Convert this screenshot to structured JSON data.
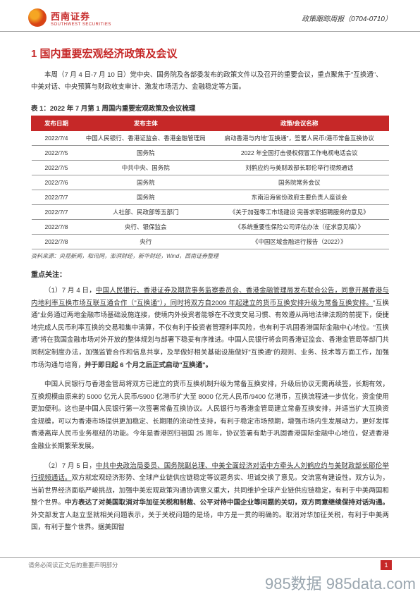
{
  "header": {
    "logo_main": "西南证券",
    "logo_sub": "SOUTHWEST SECURITIES",
    "right_text": "政策跟踪周报（0704-0710）"
  },
  "section_title": "1 国内重要宏观经济政策及会议",
  "intro": "本周（7 月 4 日-7 月 10 日）党中央、国务院及各部委发布的政策文件以及召开的重要会议，重点聚焦于\"互换通\"、中美对话、中央预算与财政收支审计、激发市场活力、金融稳定等方面。",
  "table": {
    "caption": "表 1：2022 年 7 月第 1 周国内重要宏观政策及会议梳理",
    "headers": [
      "发布日期",
      "发布主体",
      "政策/会议名称"
    ],
    "rows": [
      [
        "2022/7/4",
        "中国人民银行、香港证监会、香港金融管理局",
        "启动香港与内地\"互换通\"，签署人民币/港币常备互换协议"
      ],
      [
        "2022/7/5",
        "国务院",
        "2022 年全国打击侵权假冒工作电视电话会议"
      ],
      [
        "2022/7/5",
        "中共中央、国务院",
        "刘鹤应约与美财政部长耶伦举行视频通话"
      ],
      [
        "2022/7/6",
        "国务院",
        "国务院常务会议"
      ],
      [
        "2022/7/7",
        "国务院",
        "东南沿海省份政府主要负责人座谈会"
      ],
      [
        "2022/7/7",
        "人社部、民政部等五部门",
        "《关于加强零工市场建设 完善求职招聘服务的意见》"
      ],
      [
        "2022/7/8",
        "央行、银保监会",
        "《系统重要性保险公司评估办法（征求意见稿）》"
      ],
      [
        "2022/7/8",
        "央行",
        "《中国区域金融运行报告（2022）》"
      ]
    ],
    "source": "资料来源：央视新闻，和讯网，澎湃财经，新华财经，Wind，西南证券整理"
  },
  "focus_title": "重点关注：",
  "para1_lead": "（1）7 月 4 日，",
  "para1_underline": "中国人民银行、香港证券及期货事务监察委员会、香港金融管理局发布联合公告，同意开展香港与内地利率互换市场互联互通合作（\"互换通\"），同时将双方自2009 年起建立的货币互换安排升级为常备互换安排。",
  "para1_rest": "\"互换通\"业务通过两地金融市场基础设施连接，使境内外投资者能够在不改变交易习惯、有效遵从两地法律法规的前提下，便捷地完成人民币利率互换的交易和集中清算，不仅有利于投资者管理利率风险，也有利于巩固香港国际金融中心地位。\"互换通\"将在我国金融市场对外开放的整体规划与部署下稳妥有序推进。中国人民银行将会同香港证监会、香港金管局等部门共同制定制度办法，加强监管合作和信息共享，及早做好相关基础设施做好\"互换通\"的规则、业务、技术等方面工作，加强市场沟通与培育，",
  "para1_bold1": "并于即日起 6 个月之后正式启动\"互换通\"。",
  "para2": "中国人民银行与香港金管局将双方已建立的货币互换机制升级为常备互换安排，升级后协议无需再续签，长期有效，互换规模由原来的 5000 亿元人民币/5900 亿港币扩大至 8000 亿元人民币/9400 亿港币，互换流程进一步优化，资金使用更加便利。这也是中国人民银行第一次签署常备互换协议。人民银行与香港金管局建立常备互换安排，并适当扩大互换资金规模，可以为香港市场提供更加稳定、长期限的流动性支持，有利于稳定市场预期，增强市场内生发展动力，更好发挥香港离岸人民币业务枢纽的功能。今年是香港回归祖国 25 周年，协议签署有助于巩固香港国际金融中心地位，促进香港金融业长期繁荣发展。",
  "para3_lead": "（2）7 月 5 日，",
  "para3_underline": "中共中央政治局委员、国务院副总理、中美全面经济对话中方牵头人刘鹤应约与美财政部长耶伦举行视频通话。",
  "para3_rest": "双方就宏观经济形势、全球产业链供应链稳定等议题务实、坦诚交换了意见。交流富有建设性。双方认为，当前世界经济面临严峻挑战，加强中美宏观政策沟通协调意义重大，共同维护全球产业链供应链稳定，有利于中美两国和整个世界。",
  "para3_bold": "中方表达了对美国取消对华加征关税和制裁、公平对待中国企业等问题的关切，双方同意继续保持对话沟通。",
  "para3_tail": "外交部发言人赵立坚就相关问题表示，关于关税问题的是场，中方是一贯的明确的。取消对华加征关税，有利于中美两国，有利于整个世界。据美国智",
  "footer": {
    "note": "请务必阅读正文后的重要声明部分",
    "page": "1"
  },
  "watermark": "985数据 985data.com"
}
